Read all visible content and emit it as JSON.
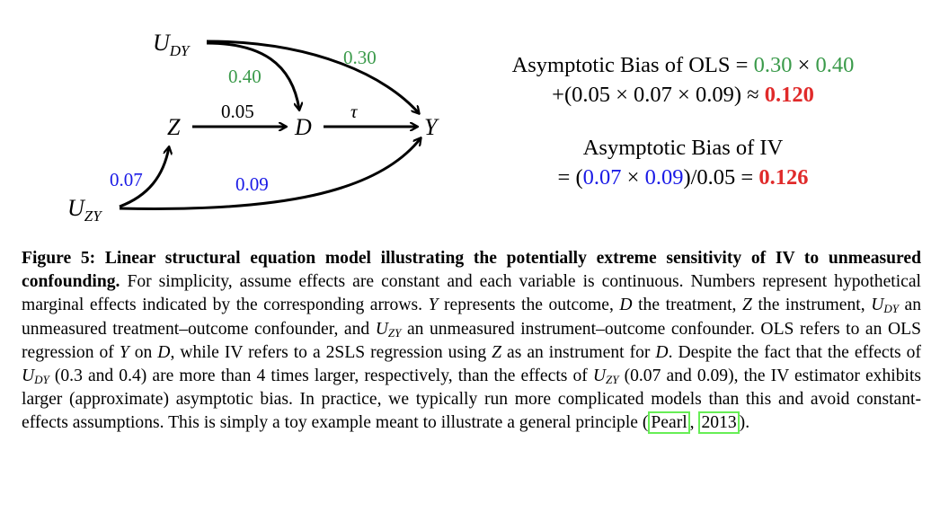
{
  "diagram": {
    "nodes": {
      "udy": {
        "main": "U",
        "sub": "DY"
      },
      "z": "Z",
      "d": "D",
      "y": "Y",
      "uzy": {
        "main": "U",
        "sub": "ZY"
      }
    },
    "edges": {
      "udy_d": "0.40",
      "udy_y": "0.30",
      "z_d": "0.05",
      "d_y": "τ",
      "uzy_z": "0.07",
      "uzy_y": "0.09"
    }
  },
  "formulas": {
    "ols_title": "Asymptotic Bias of OLS =",
    "ols_a": "0.30",
    "times": "×",
    "ols_b": "0.40",
    "ols_line2": "+(0.05 × 0.07 × 0.09) ≈",
    "ols_result": "0.120",
    "iv_title": "Asymptotic Bias of IV",
    "iv_open": "= (",
    "iv_a": "0.07",
    "iv_b": "0.09",
    "iv_rest": ")/0.05 =",
    "iv_result": "0.126"
  },
  "caption": {
    "label": "Figure 5:",
    "title": "Linear structural equation model illustrating the potentially extreme sensitivity of IV to unmeasured confounding.",
    "s1": "For simplicity, assume effects are constant and each variable is continuous. Numbers represent hypothetical marginal effects indicated by the corresponding arrows.",
    "Y": "Y",
    "s2": "represents the outcome,",
    "D": "D",
    "s3": "the treatment,",
    "Z": "Z",
    "s4": "the instrument,",
    "U": "U",
    "DY": "DY",
    "ZY": "ZY",
    "s5": "an unmeasured treatment–outcome confounder, and",
    "s6": "an unmeasured instrument–outcome confounder. OLS refers to an OLS regression of",
    "s7": "on",
    "s8": ", while IV refers to a 2SLS regression using",
    "s9": "as an instrument for",
    "s10": ". Despite the fact that the effects of",
    "s11": "(0.3 and 0.4) are more than 4 times larger, respectively, than the effects of",
    "s12": "(0.07 and 0.09), the IV estimator exhibits larger (approximate) asymptotic bias. In practice, we typically run more complicated models than this and avoid constant-effects assumptions. This is simply a toy example meant to illustrate a general principle (",
    "cite_author": "Pearl",
    "cite_sep": ",",
    "cite_year": "2013",
    "s13": ")."
  }
}
